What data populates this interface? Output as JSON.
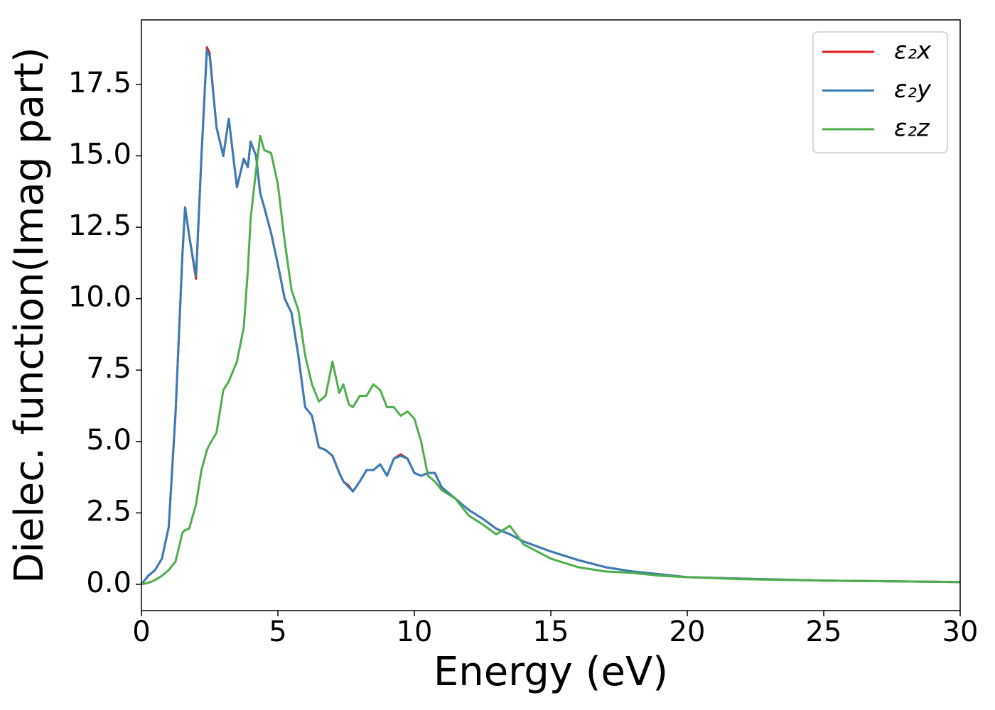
{
  "chart_data": {
    "type": "line",
    "xlabel": "Energy (eV)",
    "ylabel": "Dielec. function(Imag part)",
    "x": [
      0,
      0.25,
      0.5,
      0.75,
      1.0,
      1.25,
      1.5,
      1.6,
      1.75,
      2.0,
      2.2,
      2.4,
      2.5,
      2.75,
      3.0,
      3.2,
      3.5,
      3.75,
      3.9,
      4.0,
      4.2,
      4.35,
      4.5,
      4.75,
      5.0,
      5.25,
      5.5,
      5.75,
      6.0,
      6.25,
      6.5,
      6.75,
      7.0,
      7.25,
      7.4,
      7.6,
      7.75,
      8.0,
      8.25,
      8.5,
      8.75,
      9.0,
      9.25,
      9.5,
      9.75,
      10.0,
      10.25,
      10.5,
      10.75,
      11.0,
      11.5,
      12.0,
      12.5,
      13.0,
      13.5,
      14.0,
      15.0,
      16.0,
      17.0,
      18.0,
      19.0,
      20.0,
      22.0,
      25.0,
      30.0
    ],
    "series": [
      {
        "name": "ε₂x",
        "color": "#e41a1c",
        "values": [
          0.0,
          0.3,
          0.5,
          0.9,
          2.0,
          6.0,
          11.5,
          13.2,
          12.2,
          10.7,
          15.0,
          18.8,
          18.6,
          16.0,
          15.0,
          16.3,
          13.9,
          14.9,
          14.6,
          15.5,
          15.0,
          13.7,
          13.2,
          12.3,
          11.2,
          10.0,
          9.5,
          8.0,
          6.2,
          5.9,
          4.8,
          4.7,
          4.5,
          3.9,
          3.6,
          3.45,
          3.25,
          3.6,
          4.0,
          4.0,
          4.2,
          3.8,
          4.4,
          4.55,
          4.4,
          3.9,
          3.8,
          3.9,
          3.9,
          3.4,
          3.0,
          2.6,
          2.3,
          1.95,
          1.75,
          1.5,
          1.15,
          0.85,
          0.6,
          0.45,
          0.35,
          0.25,
          0.2,
          0.13,
          0.08
        ]
      },
      {
        "name": "ε₂y",
        "color": "#377eb8",
        "values": [
          0.0,
          0.3,
          0.5,
          0.9,
          2.0,
          6.0,
          11.5,
          13.2,
          12.2,
          10.8,
          15.0,
          18.7,
          18.5,
          16.0,
          15.0,
          16.3,
          13.9,
          14.9,
          14.6,
          15.5,
          15.0,
          13.7,
          13.2,
          12.3,
          11.2,
          10.0,
          9.5,
          8.0,
          6.2,
          5.9,
          4.8,
          4.7,
          4.5,
          3.9,
          3.6,
          3.4,
          3.25,
          3.6,
          4.0,
          4.0,
          4.2,
          3.8,
          4.4,
          4.5,
          4.4,
          3.9,
          3.8,
          3.9,
          3.9,
          3.4,
          3.0,
          2.6,
          2.3,
          1.95,
          1.75,
          1.5,
          1.15,
          0.85,
          0.6,
          0.45,
          0.35,
          0.25,
          0.2,
          0.13,
          0.08
        ]
      },
      {
        "name": "ε₂z",
        "color": "#4daf4a",
        "values": [
          0.0,
          0.05,
          0.15,
          0.3,
          0.5,
          0.8,
          1.8,
          1.9,
          1.95,
          2.8,
          4.0,
          4.7,
          4.9,
          5.3,
          6.8,
          7.1,
          7.8,
          9.0,
          11.0,
          12.8,
          14.5,
          15.7,
          15.2,
          15.1,
          14.0,
          12.0,
          10.3,
          9.6,
          8.0,
          7.0,
          6.4,
          6.6,
          7.8,
          6.7,
          7.0,
          6.3,
          6.2,
          6.6,
          6.6,
          7.0,
          6.8,
          6.2,
          6.2,
          5.9,
          6.05,
          5.8,
          5.0,
          3.8,
          3.6,
          3.3,
          3.0,
          2.4,
          2.1,
          1.75,
          2.05,
          1.4,
          0.9,
          0.6,
          0.45,
          0.4,
          0.3,
          0.25,
          0.18,
          0.13,
          0.08
        ]
      }
    ],
    "xlim": [
      0,
      30
    ],
    "xticks": [
      0,
      5,
      10,
      15,
      20,
      25,
      30
    ],
    "ylim": [
      -0.92,
      19.76
    ],
    "yticks": [
      {
        "value": 0,
        "label": "0.0"
      },
      2.5,
      {
        "value": 5,
        "label": "5.0"
      },
      7.5,
      {
        "value": 10,
        "label": "10.0"
      },
      12.5,
      {
        "value": 15,
        "label": "15.0"
      },
      17.5
    ],
    "grid": false,
    "legend": "upper right"
  }
}
